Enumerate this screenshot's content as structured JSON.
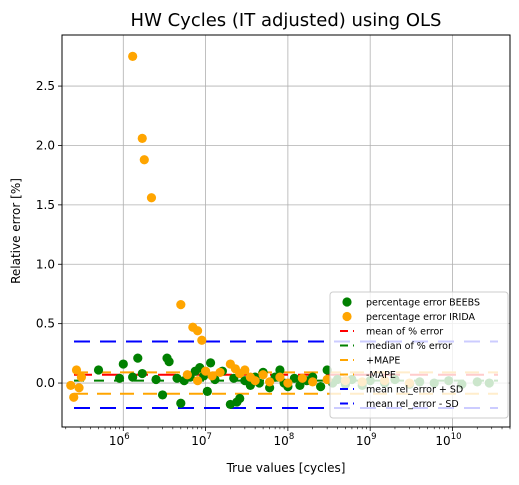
{
  "chart_data": {
    "type": "scatter",
    "title": "HW Cycles (IT adjusted) using OLS",
    "xlabel": "True values [cycles]",
    "ylabel": "Relative error [%]",
    "xscale": "log",
    "xlim": [
      180000,
      50000000000
    ],
    "ylim": [
      -0.37,
      2.93
    ],
    "grid": true,
    "legend_position": "lower-right",
    "x_ticks": [
      {
        "value": 1000000,
        "base": "10",
        "exp": "6"
      },
      {
        "value": 10000000,
        "base": "10",
        "exp": "7"
      },
      {
        "value": 100000000,
        "base": "10",
        "exp": "8"
      },
      {
        "value": 1000000000,
        "base": "10",
        "exp": "9"
      },
      {
        "value": 10000000000,
        "base": "10",
        "exp": "10"
      }
    ],
    "y_ticks": [
      {
        "value": 0.0,
        "label": "0.0"
      },
      {
        "value": 0.5,
        "label": "0.5"
      },
      {
        "value": 1.0,
        "label": "1.0"
      },
      {
        "value": 1.5,
        "label": "1.5"
      },
      {
        "value": 2.0,
        "label": "2.0"
      },
      {
        "value": 2.5,
        "label": "2.5"
      }
    ],
    "series": [
      {
        "name": "percentage error BEEBS",
        "kind": "scatter",
        "color": "#008000",
        "points": [
          [
            500000,
            0.11
          ],
          [
            900000,
            0.04
          ],
          [
            1000000,
            0.16
          ],
          [
            1300000,
            0.05
          ],
          [
            1500000,
            0.21
          ],
          [
            1700000,
            0.08
          ],
          [
            2500000,
            0.03
          ],
          [
            3000000,
            -0.1
          ],
          [
            3400000,
            0.21
          ],
          [
            3600000,
            0.18
          ],
          [
            4500000,
            0.04
          ],
          [
            5000000,
            -0.17
          ],
          [
            5500000,
            0.02
          ],
          [
            6500000,
            0.05
          ],
          [
            7500000,
            0.1
          ],
          [
            8500000,
            0.13
          ],
          [
            9500000,
            0.06
          ],
          [
            10500000,
            -0.07
          ],
          [
            11500000,
            0.17
          ],
          [
            13000000,
            0.03
          ],
          [
            16000000,
            0.1
          ],
          [
            20000000,
            -0.18
          ],
          [
            22000000,
            0.04
          ],
          [
            24000000,
            -0.16
          ],
          [
            26000000,
            -0.13
          ],
          [
            30000000,
            0.02
          ],
          [
            35000000,
            -0.02
          ],
          [
            40000000,
            0.05
          ],
          [
            45000000,
            0.0
          ],
          [
            50000000,
            0.09
          ],
          [
            60000000,
            -0.04
          ],
          [
            70000000,
            0.05
          ],
          [
            80000000,
            0.11
          ],
          [
            90000000,
            0.0
          ],
          [
            100000000,
            -0.03
          ],
          [
            120000000,
            0.04
          ],
          [
            140000000,
            -0.02
          ],
          [
            170000000,
            0.02
          ],
          [
            200000000,
            0.05
          ],
          [
            250000000,
            -0.03
          ],
          [
            300000000,
            0.11
          ],
          [
            350000000,
            0.0
          ],
          [
            400000000,
            0.03
          ],
          [
            500000000,
            -0.01
          ],
          [
            600000000,
            0.03
          ],
          [
            800000000,
            -0.02
          ],
          [
            1000000000,
            0.02
          ],
          [
            1500000000,
            0.0
          ],
          [
            2000000000,
            0.03
          ],
          [
            3000000000,
            -0.01
          ],
          [
            4000000000,
            0.01
          ],
          [
            6000000000,
            0.0
          ],
          [
            9000000000,
            0.02
          ],
          [
            13000000000,
            -0.01
          ],
          [
            20000000000,
            0.01
          ],
          [
            28000000000,
            0.0
          ]
        ]
      },
      {
        "name": "percentage error IRIDA",
        "kind": "scatter",
        "color": "#ffa500",
        "points": [
          [
            230000,
            -0.02
          ],
          [
            250000,
            -0.12
          ],
          [
            270000,
            0.11
          ],
          [
            290000,
            -0.04
          ],
          [
            310000,
            0.05
          ],
          [
            1300000,
            2.75
          ],
          [
            1700000,
            2.06
          ],
          [
            1800000,
            1.88
          ],
          [
            2200000,
            1.56
          ],
          [
            5000000,
            0.66
          ],
          [
            7000000,
            0.47
          ],
          [
            8000000,
            0.44
          ],
          [
            9000000,
            0.36
          ],
          [
            6000000,
            0.07
          ],
          [
            8000000,
            0.02
          ],
          [
            10000000,
            0.1
          ],
          [
            12000000,
            0.06
          ],
          [
            15000000,
            0.09
          ],
          [
            20000000,
            0.16
          ],
          [
            23000000,
            0.12
          ],
          [
            26000000,
            0.08
          ],
          [
            30000000,
            0.11
          ],
          [
            35000000,
            0.05
          ],
          [
            40000000,
            0.02
          ],
          [
            50000000,
            0.07
          ],
          [
            60000000,
            0.01
          ],
          [
            80000000,
            0.05
          ],
          [
            100000000,
            0.0
          ],
          [
            150000000,
            0.04
          ],
          [
            200000000,
            0.01
          ],
          [
            300000000,
            0.03
          ],
          [
            500000000,
            0.02
          ],
          [
            800000000,
            0.01
          ],
          [
            1500000000,
            0.02
          ],
          [
            3000000000,
            0.0
          ]
        ]
      },
      {
        "name": "mean of % error",
        "kind": "hline",
        "color": "#ff0000",
        "y": 0.07
      },
      {
        "name": "median of % error",
        "kind": "hline",
        "color": "#008000",
        "y": 0.02
      },
      {
        "name": "+MAPE",
        "kind": "hline",
        "color": "#ffa500",
        "y": 0.09
      },
      {
        "name": "-MAPE",
        "kind": "hline",
        "color": "#ffa500",
        "y": -0.09
      },
      {
        "name": "mean rel_error + SD",
        "kind": "hline",
        "color": "#0000ff",
        "y": 0.35
      },
      {
        "name": "mean rel_error - SD",
        "kind": "hline",
        "color": "#0000ff",
        "y": -0.21
      }
    ]
  }
}
